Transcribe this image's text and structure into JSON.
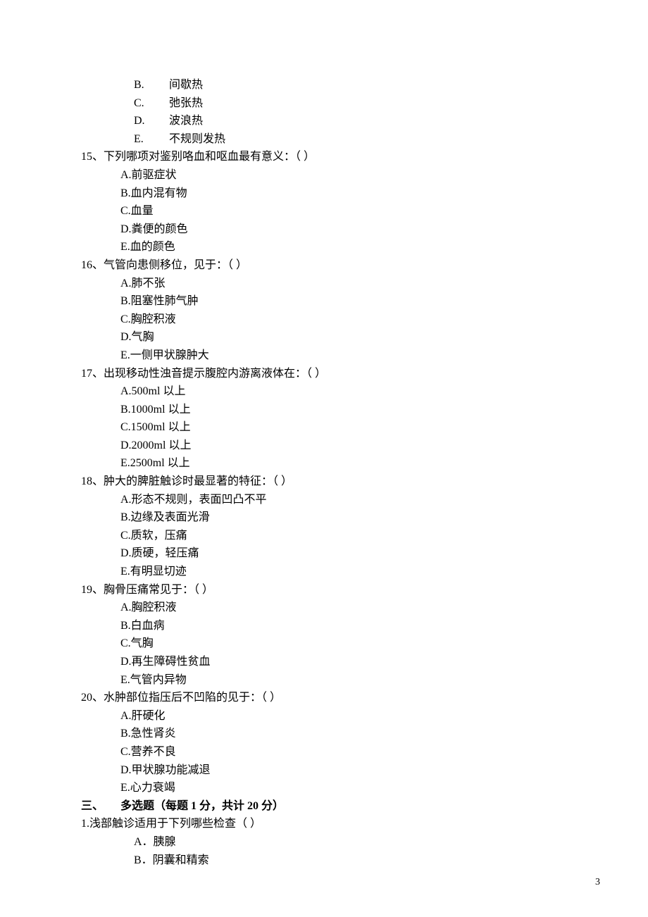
{
  "q14": {
    "options": {
      "B": "间歇热",
      "C": "弛张热",
      "D": "波浪热",
      "E": "不规则发热"
    }
  },
  "q15": {
    "text": "15、下列哪项对鉴别咯血和呕血最有意义：（  ）",
    "options": {
      "A": "A.前驱症状",
      "B": "B.血内混有物",
      "C": "C.血量",
      "D": "D.粪便的颜色",
      "E": "E.血的颜色"
    }
  },
  "q16": {
    "text": "16、气管向患侧移位，见于：（  ）",
    "options": {
      "A": "A.肺不张",
      "B": "B.阻塞性肺气肿",
      "C": "C.胸腔积液",
      "D": "D.气胸",
      "E": "E.一侧甲状腺肿大"
    }
  },
  "q17": {
    "text": "17、出现移动性浊音提示腹腔内游离液体在：（  ）",
    "options": {
      "A": "A.500ml 以上",
      "B": "B.1000ml 以上",
      "C": "C.1500ml 以上",
      "D": "D.2000ml 以上",
      "E": "E.2500ml 以上"
    }
  },
  "q18": {
    "text": "18、肿大的脾脏触诊时最显著的特征：（   ）",
    "options": {
      "A": "A.形态不规则，表面凹凸不平",
      "B": "B.边缘及表面光滑",
      "C": "C.质软，压痛",
      "D": "D.质硬，轻压痛",
      "E": "E.有明显切迹"
    }
  },
  "q19": {
    "text": "19、胸骨压痛常见于：（  ）",
    "options": {
      "A": "A.胸腔积液",
      "B": "B.白血病",
      "C": "C.气胸",
      "D": "D.再生障碍性贫血",
      "E": "E.气管内异物"
    }
  },
  "q20": {
    "text": "20、水肿部位指压后不凹陷的见于：（   ）",
    "options": {
      "A": "A.肝硬化",
      "B": "B.急性肾炎",
      "C": "C.营养不良",
      "D": "D.甲状腺功能减退",
      "E": "E.心力衰竭"
    }
  },
  "section3": {
    "num": "三、",
    "title": "多选题（每题 1 分，共计 20 分）"
  },
  "s3q1": {
    "text": "1.浅部触诊适用于下列哪些检查（   ）",
    "options": {
      "A": "A．胰腺",
      "B": "B．阴囊和精索"
    }
  },
  "pageNumber": "3"
}
